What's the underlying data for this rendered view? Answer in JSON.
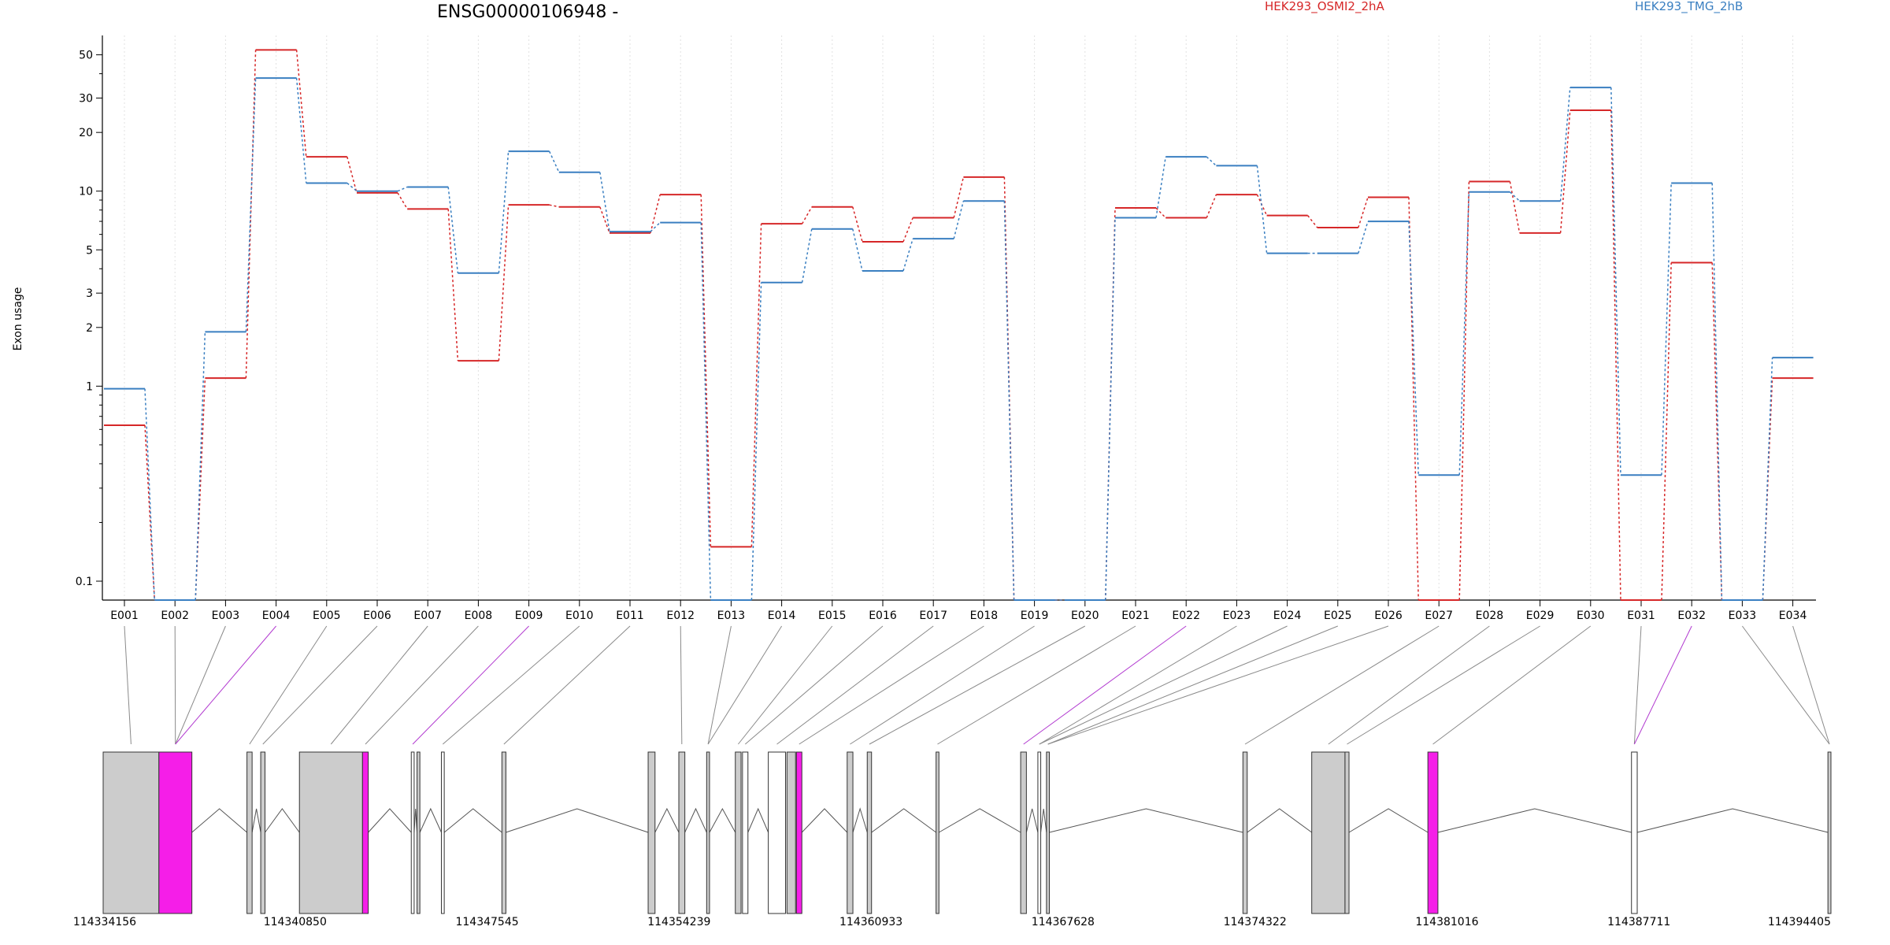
{
  "chart_data": {
    "type": "line",
    "title": "ENSG00000106948 -",
    "ylabel": "Exon usage",
    "xlabel": "",
    "y_scale": "log",
    "ylim": [
      0.08,
      60
    ],
    "y_ticks": [
      0.1,
      1,
      2,
      3,
      5,
      10,
      20,
      30,
      50
    ],
    "grid": "vertical-dotted",
    "legend_position": "top-right",
    "categories": [
      "E001",
      "E002",
      "E003",
      "E004",
      "E005",
      "E006",
      "E007",
      "E008",
      "E009",
      "E010",
      "E011",
      "E012",
      "E013",
      "E014",
      "E015",
      "E016",
      "E017",
      "E018",
      "E019",
      "E020",
      "E021",
      "E022",
      "E023",
      "E024",
      "E025",
      "E026",
      "E027",
      "E028",
      "E029",
      "E030",
      "E031",
      "E032",
      "E033",
      "E034"
    ],
    "series": [
      {
        "name": "HEK293_OSMI2_2hA",
        "color": "#d62728",
        "values": [
          0.63,
          0.08,
          1.1,
          53,
          15,
          9.8,
          8.1,
          1.35,
          8.5,
          8.3,
          6.1,
          9.6,
          0.15,
          6.8,
          8.3,
          5.5,
          7.3,
          11.8,
          0.08,
          0.08,
          8.2,
          7.3,
          9.6,
          7.5,
          6.5,
          9.3,
          0.08,
          11.2,
          6.1,
          26,
          0.08,
          4.3,
          0.08,
          1.1
        ]
      },
      {
        "name": "HEK293_TMG_2hB",
        "color": "#3a7fc1",
        "values": [
          0.97,
          0.08,
          1.9,
          38,
          11,
          10,
          10.5,
          3.8,
          16,
          12.5,
          6.2,
          6.9,
          0.08,
          3.4,
          6.4,
          3.9,
          5.7,
          8.9,
          0.08,
          0.08,
          7.3,
          15,
          13.5,
          4.8,
          4.8,
          7,
          0.35,
          9.9,
          8.9,
          34,
          0.35,
          11,
          0.08,
          1.4
        ]
      }
    ],
    "genomic_axis": {
      "labels": [
        "114334156",
        "114340850",
        "114347545",
        "114354239",
        "114360933",
        "114367628",
        "114374322",
        "114381016",
        "114387711",
        "114394405"
      ],
      "start": 114334156,
      "end": 114394405
    },
    "exon_coordinates": [
      [
        114334156,
        114336100
      ],
      [
        114336100,
        114337250
      ],
      [
        114339170,
        114339350
      ],
      [
        114339650,
        114339800
      ],
      [
        114341000,
        114343200
      ],
      [
        114343200,
        114343400
      ],
      [
        114344900,
        114345000
      ],
      [
        114345100,
        114345200
      ],
      [
        114345950,
        114346050
      ],
      [
        114348060,
        114348200
      ],
      [
        114353160,
        114353400
      ],
      [
        114354230,
        114354440
      ],
      [
        114355200,
        114355300
      ],
      [
        114356200,
        114356400
      ],
      [
        114356450,
        114356640
      ],
      [
        114357350,
        114357950
      ],
      [
        114358000,
        114358300
      ],
      [
        114358330,
        114358520
      ],
      [
        114360100,
        114360300
      ],
      [
        114360800,
        114360950
      ],
      [
        114363200,
        114363300
      ],
      [
        114366150,
        114366350
      ],
      [
        114366750,
        114366850
      ],
      [
        114367050,
        114367150
      ],
      [
        114373900,
        114374050
      ],
      [
        114376300,
        114377460
      ],
      [
        114377460,
        114377600
      ],
      [
        114380350,
        114380700
      ],
      [
        114387450,
        114387650
      ],
      [
        114394300,
        114394405
      ]
    ],
    "exon_fills": [
      "#cccccc",
      "#f51ee8",
      "#cccccc",
      "#cccccc",
      "#cccccc",
      "#f51ee8",
      "#ffffff",
      "#cccccc",
      "#ffffff",
      "#cccccc",
      "#cccccc",
      "#cccccc",
      "#cccccc",
      "#cccccc",
      "#ffffff",
      "#ffffff",
      "#cccccc",
      "#f51ee8",
      "#cccccc",
      "#cccccc",
      "#cccccc",
      "#cccccc",
      "#ffffff",
      "#cccccc",
      "#cccccc",
      "#cccccc",
      "#cccccc",
      "#f51ee8",
      "#ffffff",
      "#cccccc"
    ],
    "exon_link_targets": [
      0,
      1,
      1,
      1,
      2,
      3,
      4,
      5,
      6,
      8,
      9,
      11,
      12,
      12,
      13,
      14,
      15,
      17,
      18,
      19,
      20,
      21,
      22,
      22,
      23,
      23,
      24,
      25,
      26,
      27,
      28,
      28,
      29,
      29
    ],
    "highlight_exons": [
      "E004",
      "E009",
      "E022",
      "E032"
    ]
  }
}
